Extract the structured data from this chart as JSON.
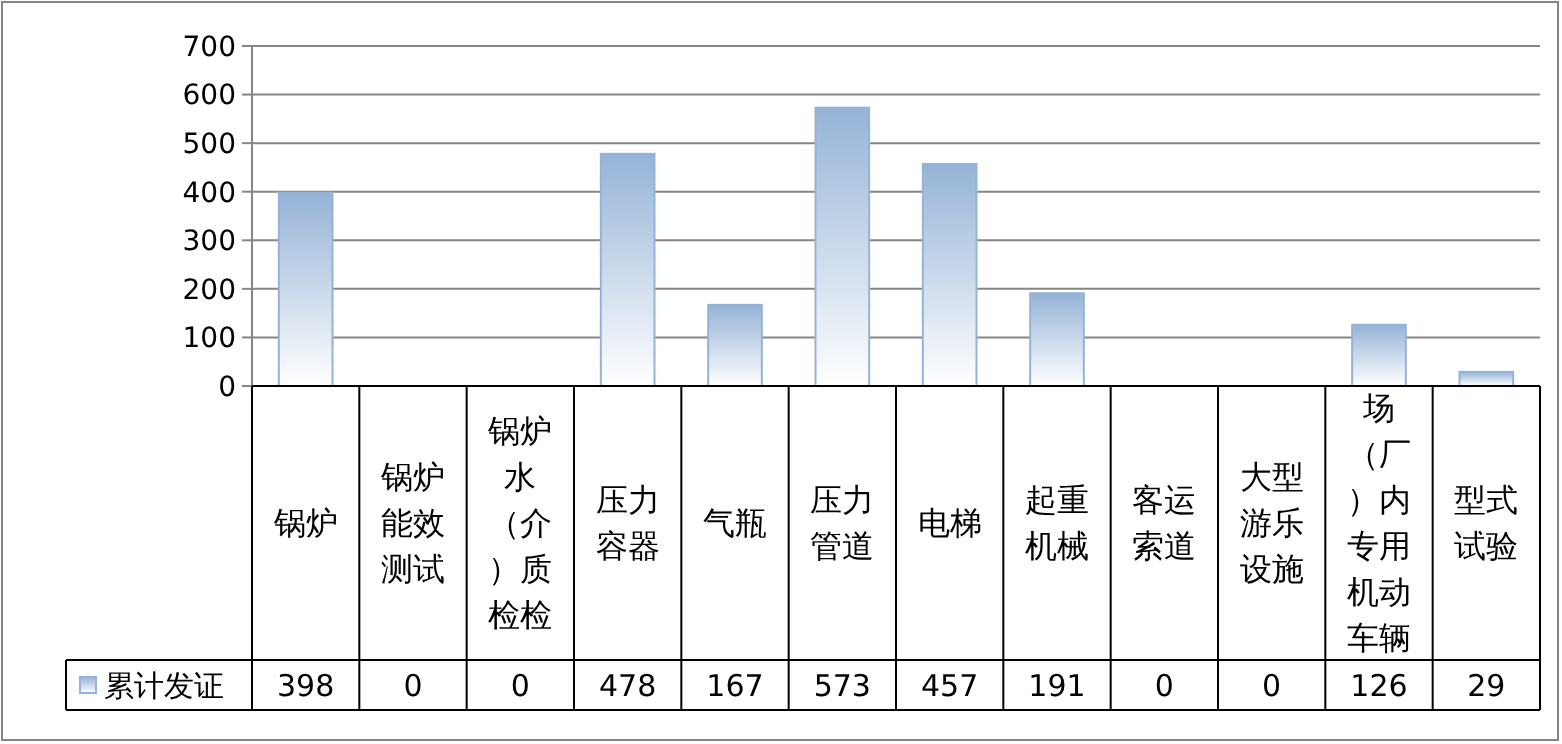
{
  "chart_data": {
    "type": "bar",
    "categories": [
      "锅炉",
      "锅炉能效测试",
      "锅炉水（介）质检检",
      "压力容器",
      "气瓶",
      "压力管道",
      "电梯",
      "起重机械",
      "客运索道",
      "大型游乐设施",
      "场（厂）内专用机动车辆",
      "型式试验"
    ],
    "series": [
      {
        "name": "累计发证",
        "color": "#95b3d7",
        "values": [
          398,
          0,
          0,
          478,
          167,
          573,
          457,
          191,
          0,
          0,
          126,
          29
        ]
      }
    ],
    "ylim": [
      0,
      700
    ],
    "yticks": [
      0,
      100,
      200,
      300,
      400,
      500,
      600,
      700
    ],
    "grid": "y",
    "legend": "bottom left",
    "data_labels": true
  }
}
